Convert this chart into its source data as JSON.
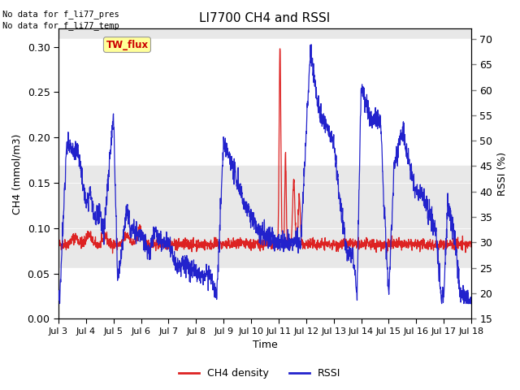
{
  "title": "LI7700 CH4 and RSSI",
  "xlabel": "Time",
  "ylabel_left": "CH4 (mmol/m3)",
  "ylabel_right": "RSSI (%)",
  "annotation1": "No data for f_li77_pres",
  "annotation2": "No data for f_li77_temp",
  "site_label": "TW_flux",
  "site_label_color": "#cc0000",
  "site_label_bg": "#ffff99",
  "xlim_days": [
    3,
    18
  ],
  "ylim_left": [
    0.0,
    0.32
  ],
  "ylim_right": [
    15,
    72
  ],
  "yticks_left": [
    0.0,
    0.05,
    0.1,
    0.15,
    0.2,
    0.25,
    0.3
  ],
  "yticks_right": [
    15,
    20,
    25,
    30,
    35,
    40,
    45,
    50,
    55,
    60,
    65,
    70
  ],
  "xtick_labels": [
    "Jul 3",
    "Jul 4",
    "Jul 5",
    "Jul 6",
    "Jul 7",
    "Jul 8",
    "Jul 9",
    "Jul 10",
    "Jul 11",
    "Jul 12",
    "Jul 13",
    "Jul 14",
    "Jul 15",
    "Jul 16",
    "Jul 17",
    "Jul 18"
  ],
  "background_color": "#e8e8e8",
  "band1_color": "#f5f5f5",
  "ch4_color": "#dd2222",
  "rssi_color": "#2222cc",
  "legend_ch4": "CH4 density",
  "legend_rssi": "RSSI"
}
